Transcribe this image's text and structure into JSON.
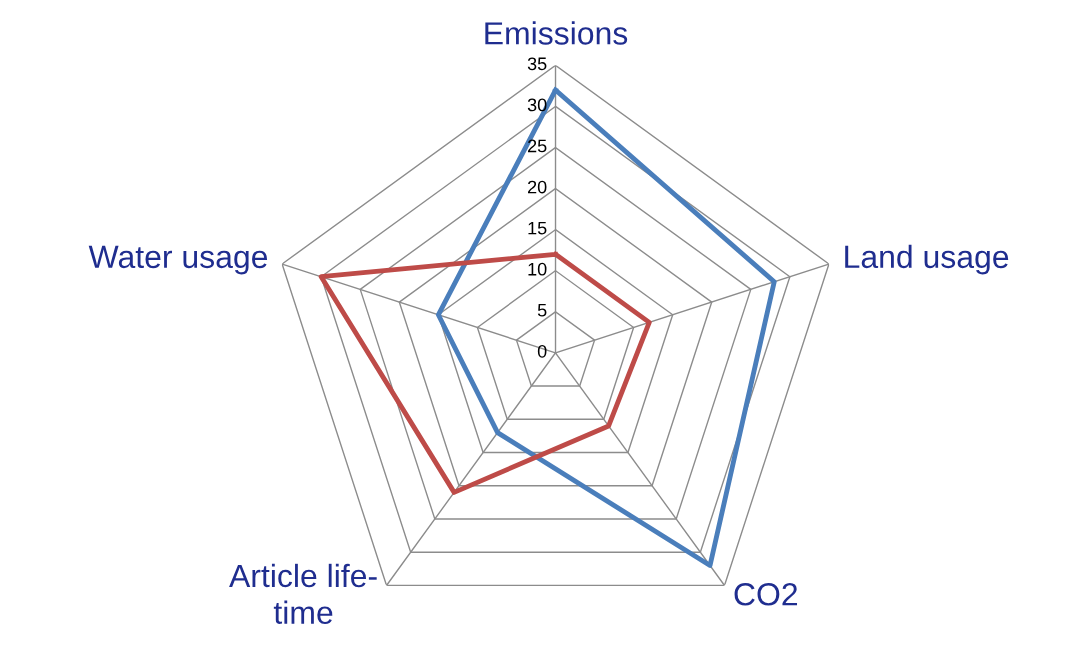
{
  "chart_data": {
    "type": "radar",
    "categories": [
      "Emissions",
      "Land usage",
      "CO2",
      "Article life-\ntime",
      "Water usage"
    ],
    "series": [
      {
        "color": "#4a7ebb",
        "values": [
          32,
          28,
          32,
          12,
          15
        ]
      },
      {
        "color": "#be4b48",
        "values": [
          12,
          12,
          11,
          21,
          30
        ]
      }
    ],
    "ylim": [
      0,
      35
    ],
    "yticks": [
      0,
      5,
      10,
      15,
      20,
      25,
      30,
      35
    ],
    "grid": true,
    "legend": false
  }
}
